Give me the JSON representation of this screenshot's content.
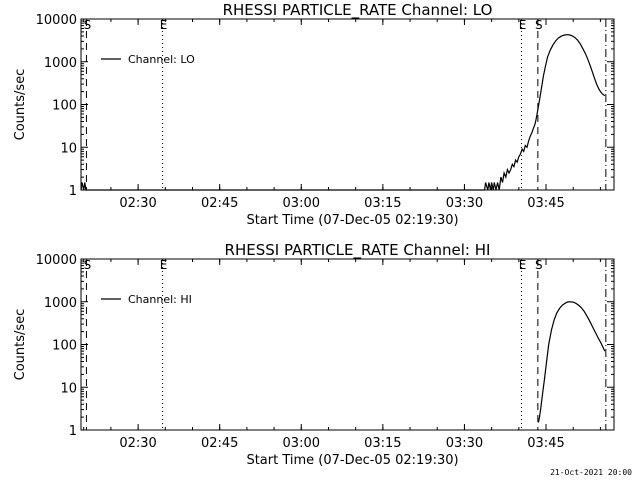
{
  "footer": {
    "stamp": "21-Oct-2021 20:00"
  },
  "chart_data": [
    {
      "type": "line",
      "title": "RHESSI PARTICLE_RATE Channel: LO",
      "xlabel": "Start Time (07-Dec-05 02:19:30)",
      "ylabel": "Counts/sec",
      "yscale": "log",
      "ylim": [
        1,
        10000
      ],
      "xlim_minutes": [
        0,
        98
      ],
      "xtick_labels": [
        "02:30",
        "02:45",
        "03:00",
        "03:15",
        "03:30",
        "03:45"
      ],
      "xtick_minutes": [
        10.5,
        25.5,
        40.5,
        55.5,
        70.5,
        85.5
      ],
      "ytick_labels": [
        "1",
        "10",
        "100",
        "1000",
        "10000"
      ],
      "ytick_values": [
        1,
        10,
        100,
        1000,
        10000
      ],
      "legend": {
        "label": "Channel: LO",
        "position": "top-left"
      },
      "event_markers": [
        {
          "label": "S",
          "minute": 1.0,
          "style": "dashed"
        },
        {
          "label": "E",
          "minute": 15.0,
          "style": "dotted"
        },
        {
          "label": "E",
          "minute": 81.0,
          "style": "dotted"
        },
        {
          "label": "S",
          "minute": 84.0,
          "style": "dashed"
        },
        {
          "label": "",
          "minute": 96.5,
          "style": "dashdot"
        }
      ],
      "series": [
        {
          "name": "Channel: LO",
          "x": [
            0.0,
            0.2,
            0.5,
            0.7,
            0.9,
            1.1,
            74.2,
            74.4,
            74.8,
            75.0,
            75.3,
            75.5,
            75.8,
            76.0,
            76.3,
            76.6,
            76.9,
            77.2,
            77.5,
            77.8,
            78.1,
            78.4,
            78.7,
            79.0,
            79.3,
            79.6,
            79.9,
            80.2,
            80.5,
            80.8,
            81.1,
            81.4,
            81.7,
            82.0,
            82.3,
            82.6,
            82.9,
            83.2,
            83.5,
            83.8,
            84.1,
            84.4,
            84.7,
            85.0,
            85.4,
            85.8,
            86.3,
            86.8,
            87.3,
            87.8,
            88.3,
            88.8,
            89.3,
            89.8,
            90.3,
            90.8,
            91.3,
            91.8,
            92.3,
            92.8,
            93.3,
            93.8,
            94.3,
            94.8,
            95.3,
            95.8,
            96.3
          ],
          "y": [
            1,
            1.5,
            1,
            1.5,
            1,
            1,
            1,
            1.5,
            1,
            1.5,
            1,
            1.5,
            1,
            1.5,
            1,
            1.5,
            1,
            2,
            1.5,
            2.5,
            2,
            3,
            2.5,
            3,
            4,
            3.5,
            5,
            4.5,
            6,
            7,
            9,
            8,
            11,
            10,
            14,
            18,
            22,
            28,
            35,
            55,
            90,
            150,
            260,
            450,
            800,
            1300,
            1900,
            2500,
            3100,
            3600,
            3950,
            4200,
            4300,
            4250,
            4050,
            3700,
            3200,
            2600,
            2000,
            1500,
            1050,
            700,
            450,
            300,
            220,
            180,
            160
          ]
        }
      ]
    },
    {
      "type": "line",
      "title": "RHESSI PARTICLE_RATE Channel: HI",
      "xlabel": "Start Time (07-Dec-05 02:19:30)",
      "ylabel": "Counts/sec",
      "yscale": "log",
      "ylim": [
        1,
        10000
      ],
      "xlim_minutes": [
        0,
        98
      ],
      "xtick_labels": [
        "02:30",
        "02:45",
        "03:00",
        "03:15",
        "03:30",
        "03:45"
      ],
      "xtick_minutes": [
        10.5,
        25.5,
        40.5,
        55.5,
        70.5,
        85.5
      ],
      "ytick_labels": [
        "1",
        "10",
        "100",
        "1000",
        "10000"
      ],
      "ytick_values": [
        1,
        10,
        100,
        1000,
        10000
      ],
      "legend": {
        "label": "Channel: HI",
        "position": "top-left"
      },
      "event_markers": [
        {
          "label": "S",
          "minute": 1.0,
          "style": "dashed"
        },
        {
          "label": "E",
          "minute": 15.0,
          "style": "dotted"
        },
        {
          "label": "E",
          "minute": 81.0,
          "style": "dotted"
        },
        {
          "label": "S",
          "minute": 84.0,
          "style": "dashed"
        },
        {
          "label": "",
          "minute": 96.5,
          "style": "dashdot"
        }
      ],
      "series": [
        {
          "name": "Channel: HI",
          "x": [
            84.1,
            84.3,
            84.5,
            84.8,
            85.2,
            85.6,
            86.0,
            86.5,
            87.0,
            87.5,
            88.0,
            88.5,
            89.0,
            89.5,
            90.0,
            90.5,
            91.0,
            91.5,
            92.0,
            92.5,
            93.0,
            93.5,
            94.0,
            94.5,
            95.0,
            95.5,
            96.0,
            96.3
          ],
          "y": [
            1.5,
            2,
            3,
            6,
            15,
            40,
            100,
            220,
            380,
            550,
            700,
            830,
            920,
            990,
            1000,
            980,
            920,
            830,
            720,
            600,
            470,
            360,
            270,
            200,
            150,
            115,
            85,
            70
          ]
        }
      ]
    }
  ]
}
